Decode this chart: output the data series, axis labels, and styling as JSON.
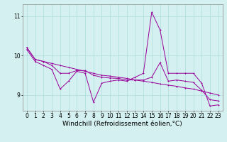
{
  "x": [
    0,
    1,
    2,
    3,
    4,
    5,
    6,
    7,
    8,
    9,
    10,
    11,
    12,
    13,
    14,
    15,
    16,
    17,
    18,
    19,
    20,
    21,
    22,
    23
  ],
  "line1": [
    10.2,
    9.9,
    9.85,
    9.8,
    9.75,
    9.7,
    9.65,
    9.6,
    9.55,
    9.5,
    9.48,
    9.45,
    9.42,
    9.38,
    9.35,
    9.32,
    9.28,
    9.25,
    9.22,
    9.18,
    9.15,
    9.1,
    9.05,
    9.0
  ],
  "line2": [
    10.15,
    9.85,
    9.75,
    9.65,
    9.15,
    9.35,
    9.6,
    9.55,
    8.82,
    9.3,
    9.35,
    9.38,
    9.35,
    9.45,
    9.55,
    11.1,
    10.65,
    9.55,
    9.55,
    9.55,
    9.55,
    9.3,
    8.72,
    8.75
  ],
  "line3": [
    10.2,
    9.9,
    9.85,
    9.75,
    9.55,
    9.55,
    9.62,
    9.62,
    9.5,
    9.45,
    9.43,
    9.42,
    9.38,
    9.38,
    9.38,
    9.45,
    9.82,
    9.35,
    9.38,
    9.35,
    9.32,
    9.12,
    8.88,
    8.85
  ],
  "line_color": "#990099",
  "bg_color": "#d4f0f0",
  "grid_color": "#aadddd",
  "ylim": [
    8.6,
    11.3
  ],
  "xlim": [
    -0.5,
    23.5
  ],
  "xlabel": "Windchill (Refroidissement éolien,°C)",
  "yticks": [
    9,
    10,
    11
  ],
  "xticks": [
    0,
    1,
    2,
    3,
    4,
    5,
    6,
    7,
    8,
    9,
    10,
    11,
    12,
    13,
    14,
    15,
    16,
    17,
    18,
    19,
    20,
    21,
    22,
    23
  ],
  "tick_fontsize": 5.5,
  "xlabel_fontsize": 6.5,
  "marker_size": 2.0,
  "line_width": 0.7
}
